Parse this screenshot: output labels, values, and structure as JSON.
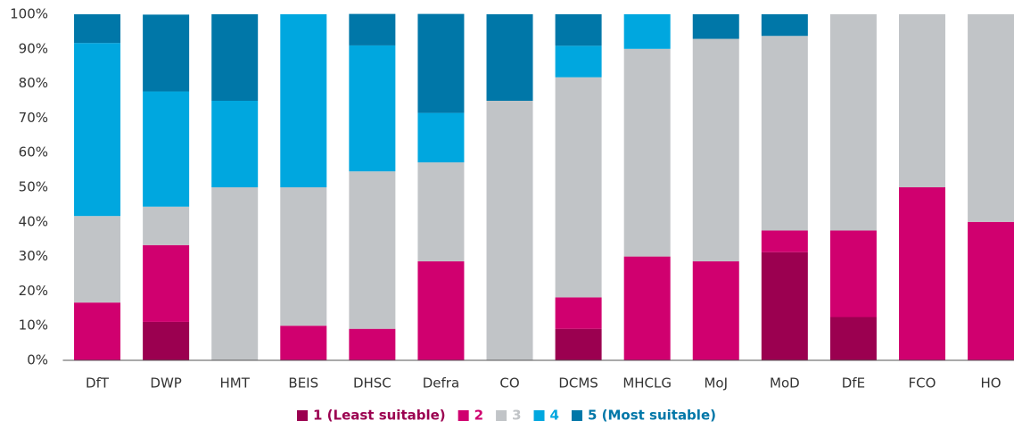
{
  "chart_data": {
    "type": "stacked_bar_percent",
    "categories": [
      "DfT",
      "DWP",
      "HMT",
      "BEIS",
      "DHSC",
      "Defra",
      "CO",
      "DCMS",
      "MHCLG",
      "MoJ",
      "MoD",
      "DfE",
      "FCO",
      "HO"
    ],
    "series": [
      {
        "name": "1 (Least suitable)",
        "color": "#9b0050",
        "values": [
          0,
          11.1,
          0,
          0,
          0,
          0,
          0,
          9.1,
          0,
          0,
          31.25,
          12.5,
          0,
          0
        ]
      },
      {
        "name": "2",
        "color": "#d0006f",
        "values": [
          16.7,
          22.2,
          0,
          10,
          9.1,
          28.6,
          0,
          9.1,
          30,
          28.6,
          6.25,
          25,
          50,
          40
        ]
      },
      {
        "name": "3",
        "color": "#c1c4c7",
        "values": [
          25,
          11.1,
          50,
          40,
          45.5,
          28.6,
          75,
          63.6,
          60,
          64.3,
          56.25,
          62.5,
          50,
          60
        ]
      },
      {
        "name": "4",
        "color": "#00a7df",
        "values": [
          50,
          33.3,
          25,
          50,
          36.4,
          14.3,
          0,
          9.1,
          10,
          0,
          0,
          0,
          0,
          0
        ]
      },
      {
        "name": "5 (Most suitable)",
        "color": "#0077a8",
        "values": [
          8.3,
          22.2,
          25,
          0,
          9.1,
          28.6,
          25,
          9.1,
          0,
          7.1,
          6.25,
          0,
          0,
          0
        ]
      }
    ],
    "ylim": [
      0,
      100
    ],
    "yticks": [
      {
        "value": 0,
        "label": "0%"
      },
      {
        "value": 10,
        "label": "10%"
      },
      {
        "value": 20,
        "label": "20%"
      },
      {
        "value": 30,
        "label": "30%"
      },
      {
        "value": 40,
        "label": "40%"
      },
      {
        "value": 50,
        "label": "50%"
      },
      {
        "value": 60,
        "label": "60%"
      },
      {
        "value": 70,
        "label": "70%"
      },
      {
        "value": 80,
        "label": "80%"
      },
      {
        "value": 90,
        "label": "90%"
      },
      {
        "value": 100,
        "label": "100%"
      }
    ],
    "legend": "bottom"
  }
}
